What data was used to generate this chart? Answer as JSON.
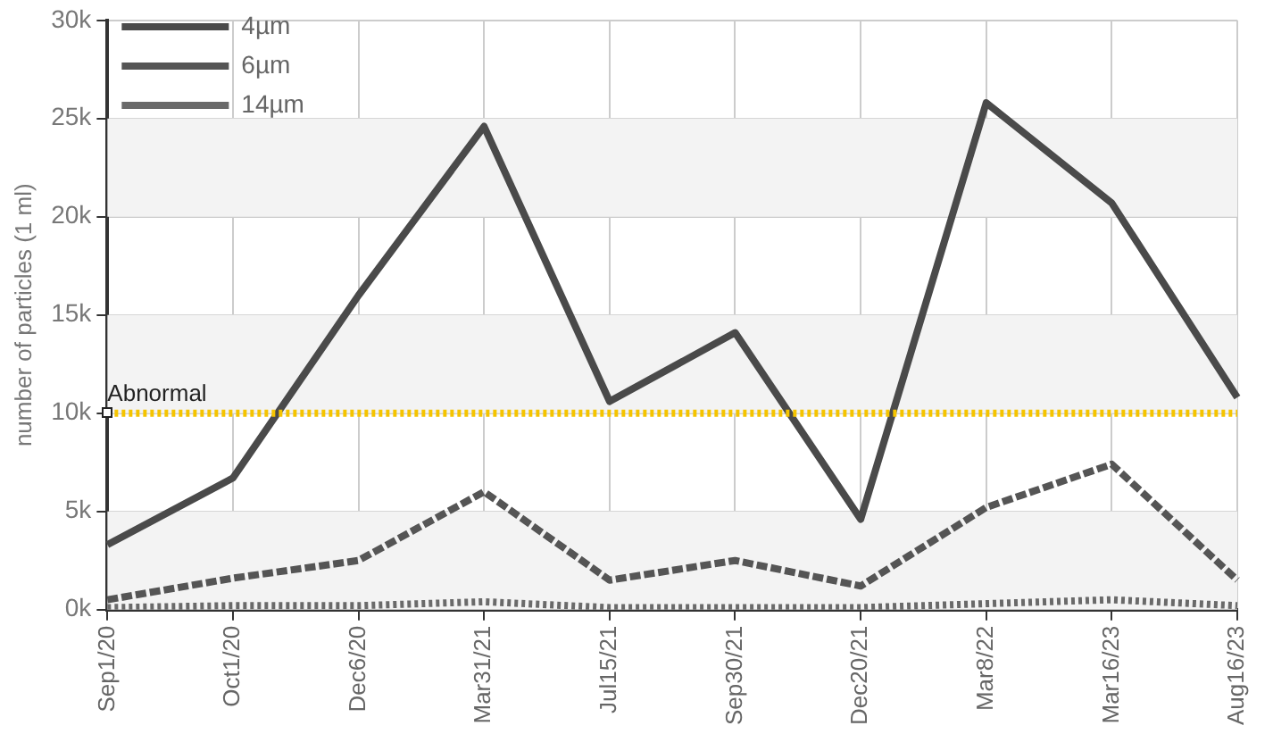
{
  "chart_data": {
    "type": "line",
    "ylabel": "number of particles (1 ml)",
    "categories": [
      "Sep1/20",
      "Oct1/20",
      "Dec6/20",
      "Mar31/21",
      "Jul15/21",
      "Sep30/21",
      "Dec20/21",
      "Mar8/22",
      "Mar16/23",
      "Aug16/23"
    ],
    "series": [
      {
        "name": "4µm",
        "color": "#4a4a4a",
        "line_style": "solid",
        "values": [
          3300,
          6700,
          16000,
          24600,
          10600,
          14100,
          4600,
          25800,
          20700,
          10800
        ]
      },
      {
        "name": "6µm",
        "color": "#555555",
        "line_style": "dashed",
        "values": [
          500,
          1600,
          2500,
          6000,
          1500,
          2500,
          1200,
          5200,
          7400,
          1500
        ]
      },
      {
        "name": "14µm",
        "color": "#6a6a6a",
        "line_style": "dotted",
        "values": [
          100,
          200,
          200,
          400,
          100,
          100,
          100,
          300,
          500,
          200
        ]
      }
    ],
    "ylim": [
      0,
      30000
    ],
    "yticks": [
      {
        "value": 0,
        "label": "0k"
      },
      {
        "value": 5000,
        "label": "5k"
      },
      {
        "value": 10000,
        "label": "10k"
      },
      {
        "value": 15000,
        "label": "15k"
      },
      {
        "value": 20000,
        "label": "20k"
      },
      {
        "value": 25000,
        "label": "25k"
      },
      {
        "value": 30000,
        "label": "30k"
      }
    ],
    "ref_lines": [
      {
        "axis": "y",
        "value": 10000,
        "label": "Abnormal",
        "color": "#f5c400",
        "line_style": "dotted"
      }
    ],
    "grid": true,
    "legend": "top left",
    "marker": "none"
  }
}
